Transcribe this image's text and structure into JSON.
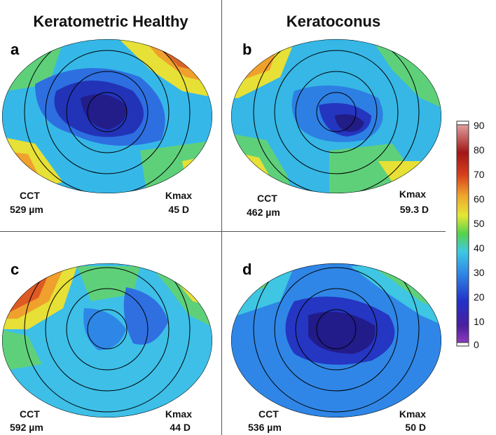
{
  "columns": {
    "left": "Keratometric Healthy",
    "right": "Keratoconus"
  },
  "panels": [
    {
      "letter": "a",
      "cct_label": "CCT",
      "cct_value": "529 µm",
      "kmax_label": "Kmax",
      "kmax_value": "45 D"
    },
    {
      "letter": "b",
      "cct_label": "CCT",
      "cct_value": "462 µm",
      "kmax_label": "Kmax",
      "kmax_value": "59.3 D"
    },
    {
      "letter": "c",
      "cct_label": "CCT",
      "cct_value": "592 µm",
      "kmax_label": "Kmax",
      "kmax_value": "44 D"
    },
    {
      "letter": "d",
      "cct_label": "CCT",
      "cct_value": "536 µm",
      "kmax_label": "Kmax",
      "kmax_value": "50 D"
    }
  ],
  "colorbar": {
    "ticks": [
      "90",
      "80",
      "70",
      "60",
      "50",
      "40",
      "30",
      "20",
      "10",
      "0"
    ],
    "colors": [
      "#7a1fa8",
      "#2b1a8f",
      "#2a3fcf",
      "#2f8fe8",
      "#37c7e0",
      "#4fd24a",
      "#e8e833",
      "#f0a52c",
      "#d9471e",
      "#9c1414",
      "#e0a0a0"
    ]
  }
}
